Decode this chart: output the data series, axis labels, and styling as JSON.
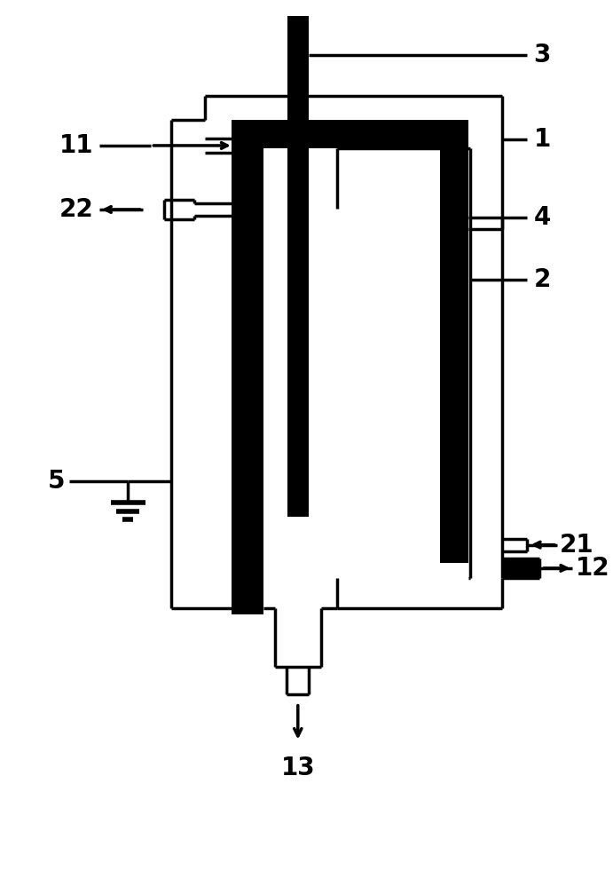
{
  "fig_width": 6.91,
  "fig_height": 9.81,
  "dpi": 100
}
